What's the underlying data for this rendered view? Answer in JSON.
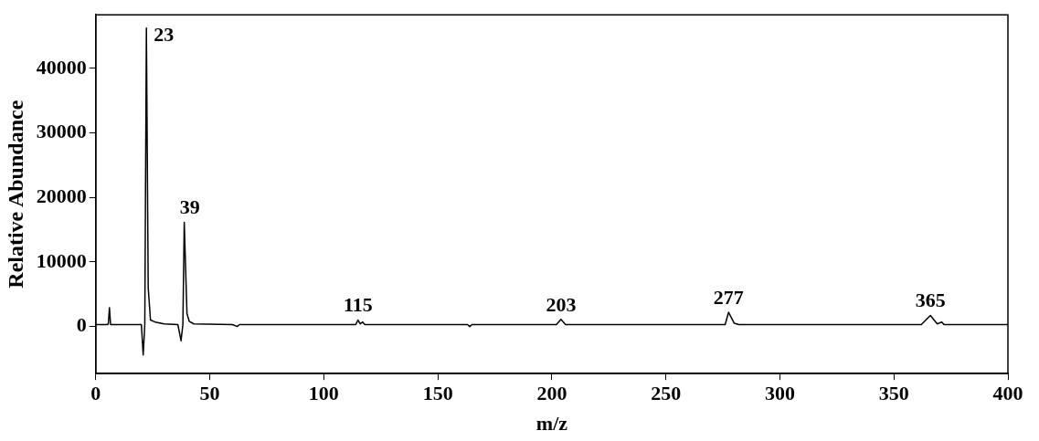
{
  "chart_data": {
    "type": "line",
    "xlabel": "m/z",
    "ylabel": "Relative Abundance",
    "x": [
      0,
      5,
      5.5,
      6,
      6.5,
      8,
      20,
      20.8,
      21.5,
      22.2,
      23,
      24,
      26,
      30,
      36,
      37.4,
      38.2,
      38.8,
      40,
      41,
      43,
      60,
      62,
      63,
      114,
      115,
      116,
      117,
      118,
      163,
      164,
      165,
      202,
      204,
      206,
      276,
      277.5,
      280,
      282,
      362,
      366,
      369,
      371,
      372,
      400
    ],
    "series": [
      {
        "color": "#000000",
        "values": [
          300,
          300,
          400,
          2900,
          300,
          300,
          300,
          -4400,
          300,
          46250,
          6000,
          1000,
          700,
          400,
          300,
          -2200,
          300,
          16150,
          2000,
          800,
          400,
          300,
          0,
          300,
          300,
          1000,
          400,
          700,
          300,
          300,
          0,
          300,
          300,
          1100,
          300,
          300,
          2200,
          500,
          300,
          300,
          1700,
          400,
          700,
          300,
          300
        ]
      }
    ],
    "xlim": [
      0,
      400
    ],
    "xticks": [
      0,
      50,
      100,
      150,
      200,
      250,
      300,
      350,
      400
    ],
    "ylim": [
      -7300,
      48300
    ],
    "yticks": [
      0,
      10000,
      20000,
      30000,
      40000
    ],
    "grid": false,
    "legend": false,
    "marker": "none",
    "line_style": "solid",
    "annotations": [
      {
        "text": "23",
        "x": 22.2,
        "y": 46250
      },
      {
        "text": "39",
        "x": 38.8,
        "y": 16150
      },
      {
        "text": "115",
        "x": 115,
        "y": 1000
      },
      {
        "text": "203",
        "x": 204,
        "y": 1100
      },
      {
        "text": "277",
        "x": 277.5,
        "y": 2200
      },
      {
        "text": "365",
        "x": 366,
        "y": 1700
      }
    ]
  }
}
